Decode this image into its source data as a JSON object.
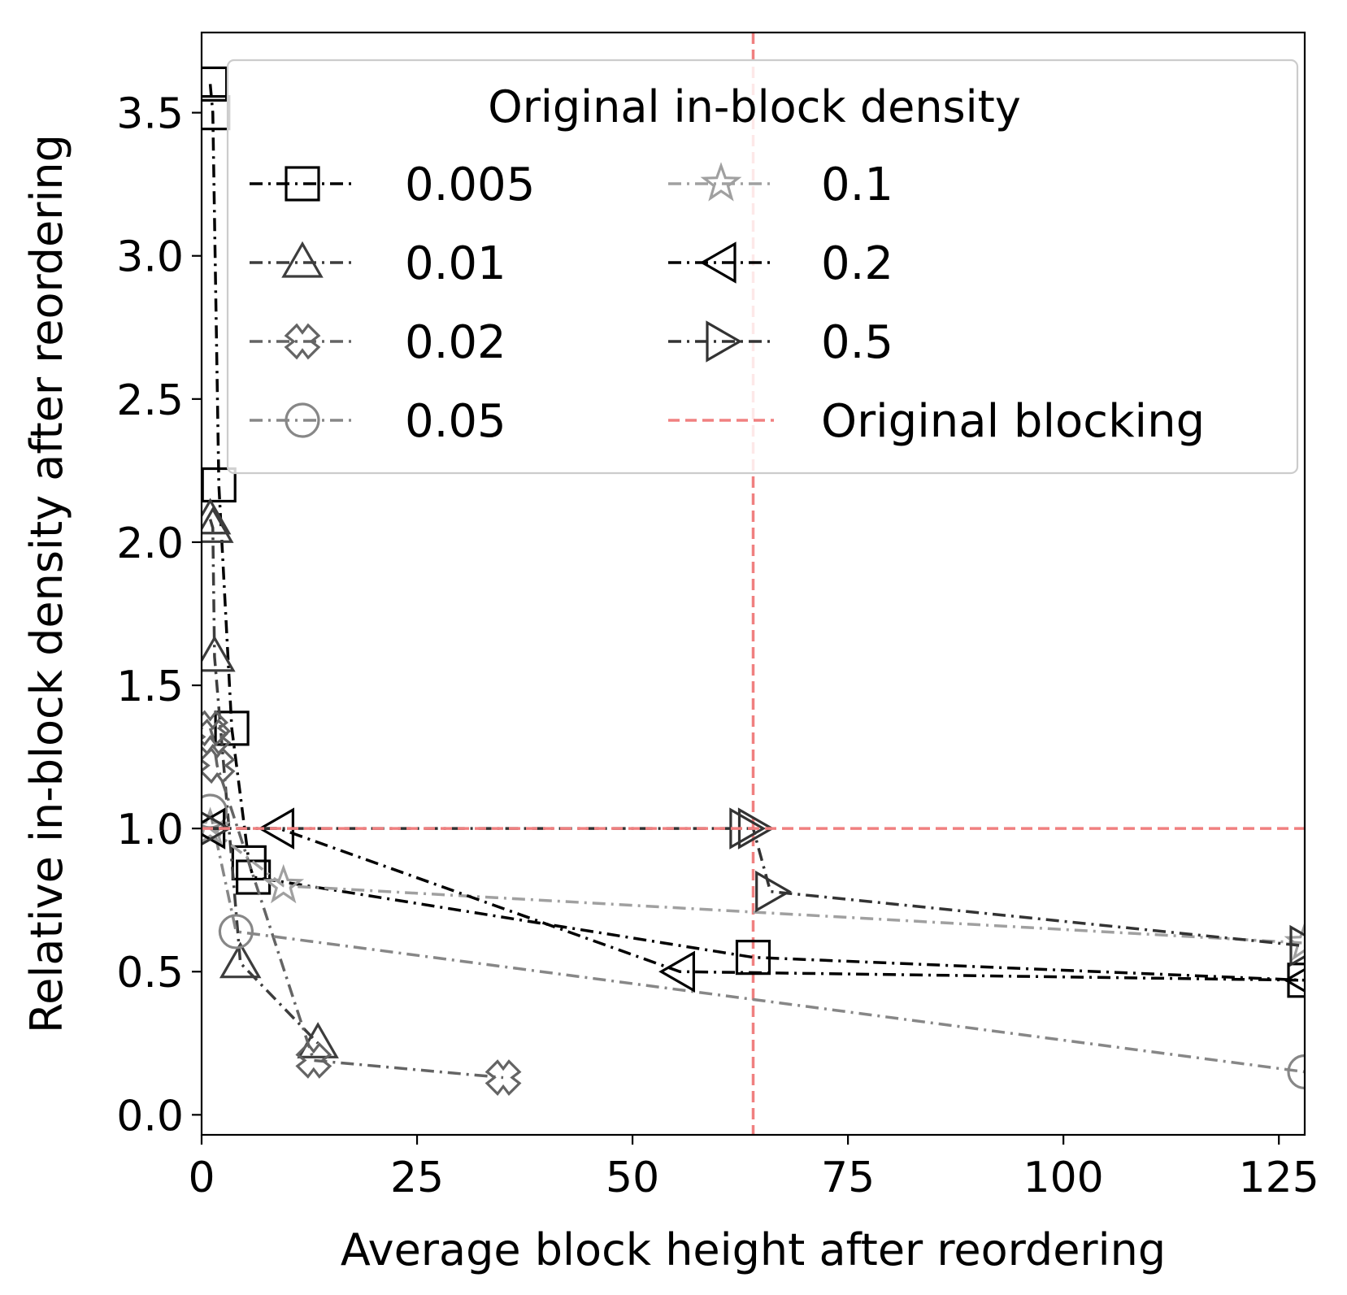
{
  "chart_data": {
    "type": "line",
    "title": "",
    "xlabel": "Average block height after reordering",
    "ylabel": "Relative in-block density after reordering",
    "xlim": [
      0,
      128
    ],
    "ylim": [
      -0.07,
      3.78
    ],
    "xticks": [
      0,
      25,
      50,
      75,
      100,
      125
    ],
    "yticks": [
      0.0,
      0.5,
      1.0,
      1.5,
      2.0,
      2.5,
      3.0,
      3.5
    ],
    "xtick_labels": [
      "0",
      "25",
      "50",
      "75",
      "100",
      "125"
    ],
    "ytick_labels": [
      "0.0",
      "0.5",
      "1.0",
      "1.5",
      "2.0",
      "2.5",
      "3.0",
      "3.5"
    ],
    "grid": false,
    "legend": {
      "title": "Original in-block density",
      "placement": "top-right",
      "columns": 2
    },
    "series": [
      {
        "name": "0.005",
        "marker": "square",
        "color": "#000000",
        "x": [
          1,
          1.3,
          2,
          3.5,
          5.5,
          6,
          64,
          128
        ],
        "y": [
          3.6,
          3.5,
          2.2,
          1.35,
          0.88,
          0.83,
          0.55,
          0.47
        ]
      },
      {
        "name": "0.01",
        "marker": "triangle-up",
        "color": "#3d3d3d",
        "x": [
          1,
          1.3,
          1.5,
          4.5,
          13.5
        ],
        "y": [
          2.08,
          2.05,
          1.6,
          0.53,
          0.25
        ]
      },
      {
        "name": "0.02",
        "marker": "x-thick",
        "color": "#646464",
        "x": [
          1,
          1.3,
          1.8,
          13,
          35
        ],
        "y": [
          1.35,
          1.32,
          1.22,
          0.19,
          0.13
        ]
      },
      {
        "name": "0.05",
        "marker": "circle",
        "color": "#878787",
        "x": [
          1,
          4,
          128
        ],
        "y": [
          1.06,
          0.64,
          0.15
        ]
      },
      {
        "name": "0.1",
        "marker": "star",
        "color": "#a0a0a0",
        "x": [
          1,
          9.5,
          128
        ],
        "y": [
          1.0,
          0.8,
          0.6
        ]
      },
      {
        "name": "0.2",
        "marker": "triangle-left",
        "color": "#000000",
        "x": [
          1,
          9,
          55.5,
          128
        ],
        "y": [
          1.0,
          1.0,
          0.5,
          0.47
        ]
      },
      {
        "name": "0.5",
        "marker": "triangle-right",
        "color": "#333333",
        "x": [
          1,
          63,
          64,
          66,
          128
        ],
        "y": [
          1.0,
          1.0,
          1.0,
          0.78,
          0.59
        ]
      },
      {
        "name": "Original blocking",
        "marker": "none",
        "color": "#f08080",
        "reference": {
          "x": 64,
          "y": 1.0
        }
      }
    ]
  }
}
